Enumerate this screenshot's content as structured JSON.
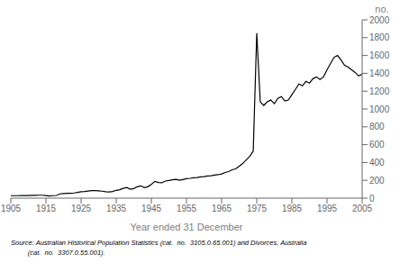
{
  "chart_data": {
    "type": "line",
    "xlabel": "Year ended 31 December",
    "ylabel": "no.",
    "x": [
      1905,
      1906,
      1907,
      1908,
      1909,
      1910,
      1911,
      1912,
      1913,
      1914,
      1915,
      1916,
      1917,
      1918,
      1919,
      1920,
      1921,
      1922,
      1923,
      1924,
      1925,
      1926,
      1927,
      1928,
      1929,
      1930,
      1931,
      1932,
      1933,
      1934,
      1935,
      1936,
      1937,
      1938,
      1939,
      1940,
      1941,
      1942,
      1943,
      1944,
      1945,
      1946,
      1947,
      1948,
      1949,
      1950,
      1951,
      1952,
      1953,
      1954,
      1955,
      1956,
      1957,
      1958,
      1959,
      1960,
      1961,
      1962,
      1963,
      1964,
      1965,
      1966,
      1967,
      1968,
      1969,
      1970,
      1971,
      1972,
      1973,
      1974,
      1975,
      1976,
      1977,
      1978,
      1979,
      1980,
      1981,
      1982,
      1983,
      1984,
      1985,
      1986,
      1987,
      1988,
      1989,
      1990,
      1991,
      1992,
      1993,
      1994,
      1995,
      1996,
      1997,
      1998,
      1999,
      2000,
      2001,
      2002,
      2003,
      2004,
      2005
    ],
    "values": [
      28,
      28,
      28,
      30,
      30,
      30,
      32,
      32,
      33,
      33,
      30,
      25,
      28,
      30,
      48,
      52,
      55,
      55,
      58,
      65,
      72,
      75,
      80,
      85,
      85,
      82,
      78,
      72,
      70,
      75,
      88,
      95,
      110,
      120,
      100,
      108,
      128,
      138,
      118,
      128,
      155,
      188,
      175,
      172,
      192,
      198,
      205,
      210,
      200,
      208,
      218,
      222,
      228,
      232,
      238,
      242,
      248,
      252,
      258,
      263,
      272,
      288,
      298,
      318,
      328,
      358,
      388,
      428,
      468,
      528,
      1850,
      1080,
      1040,
      1080,
      1100,
      1060,
      1120,
      1140,
      1090,
      1100,
      1160,
      1220,
      1280,
      1260,
      1310,
      1290,
      1340,
      1360,
      1330,
      1360,
      1440,
      1510,
      1580,
      1600,
      1550,
      1490,
      1470,
      1440,
      1410,
      1370,
      1390
    ],
    "color": "#000000",
    "xlim": [
      1905,
      2005
    ],
    "ylim": [
      0,
      2000
    ],
    "xticks": [
      1905,
      1915,
      1925,
      1935,
      1945,
      1955,
      1965,
      1975,
      1985,
      1995,
      2005
    ],
    "yticks": [
      0,
      200,
      400,
      600,
      800,
      1000,
      1200,
      1400,
      1600,
      1800,
      2000
    ],
    "grid": false,
    "annotations": [
      "Source: Australian Historical Population Statistics (cat.  no.  3105.0.65.001) and Divorces, Australia",
      "         (cat.  no.  3307.0.55.001)."
    ]
  }
}
